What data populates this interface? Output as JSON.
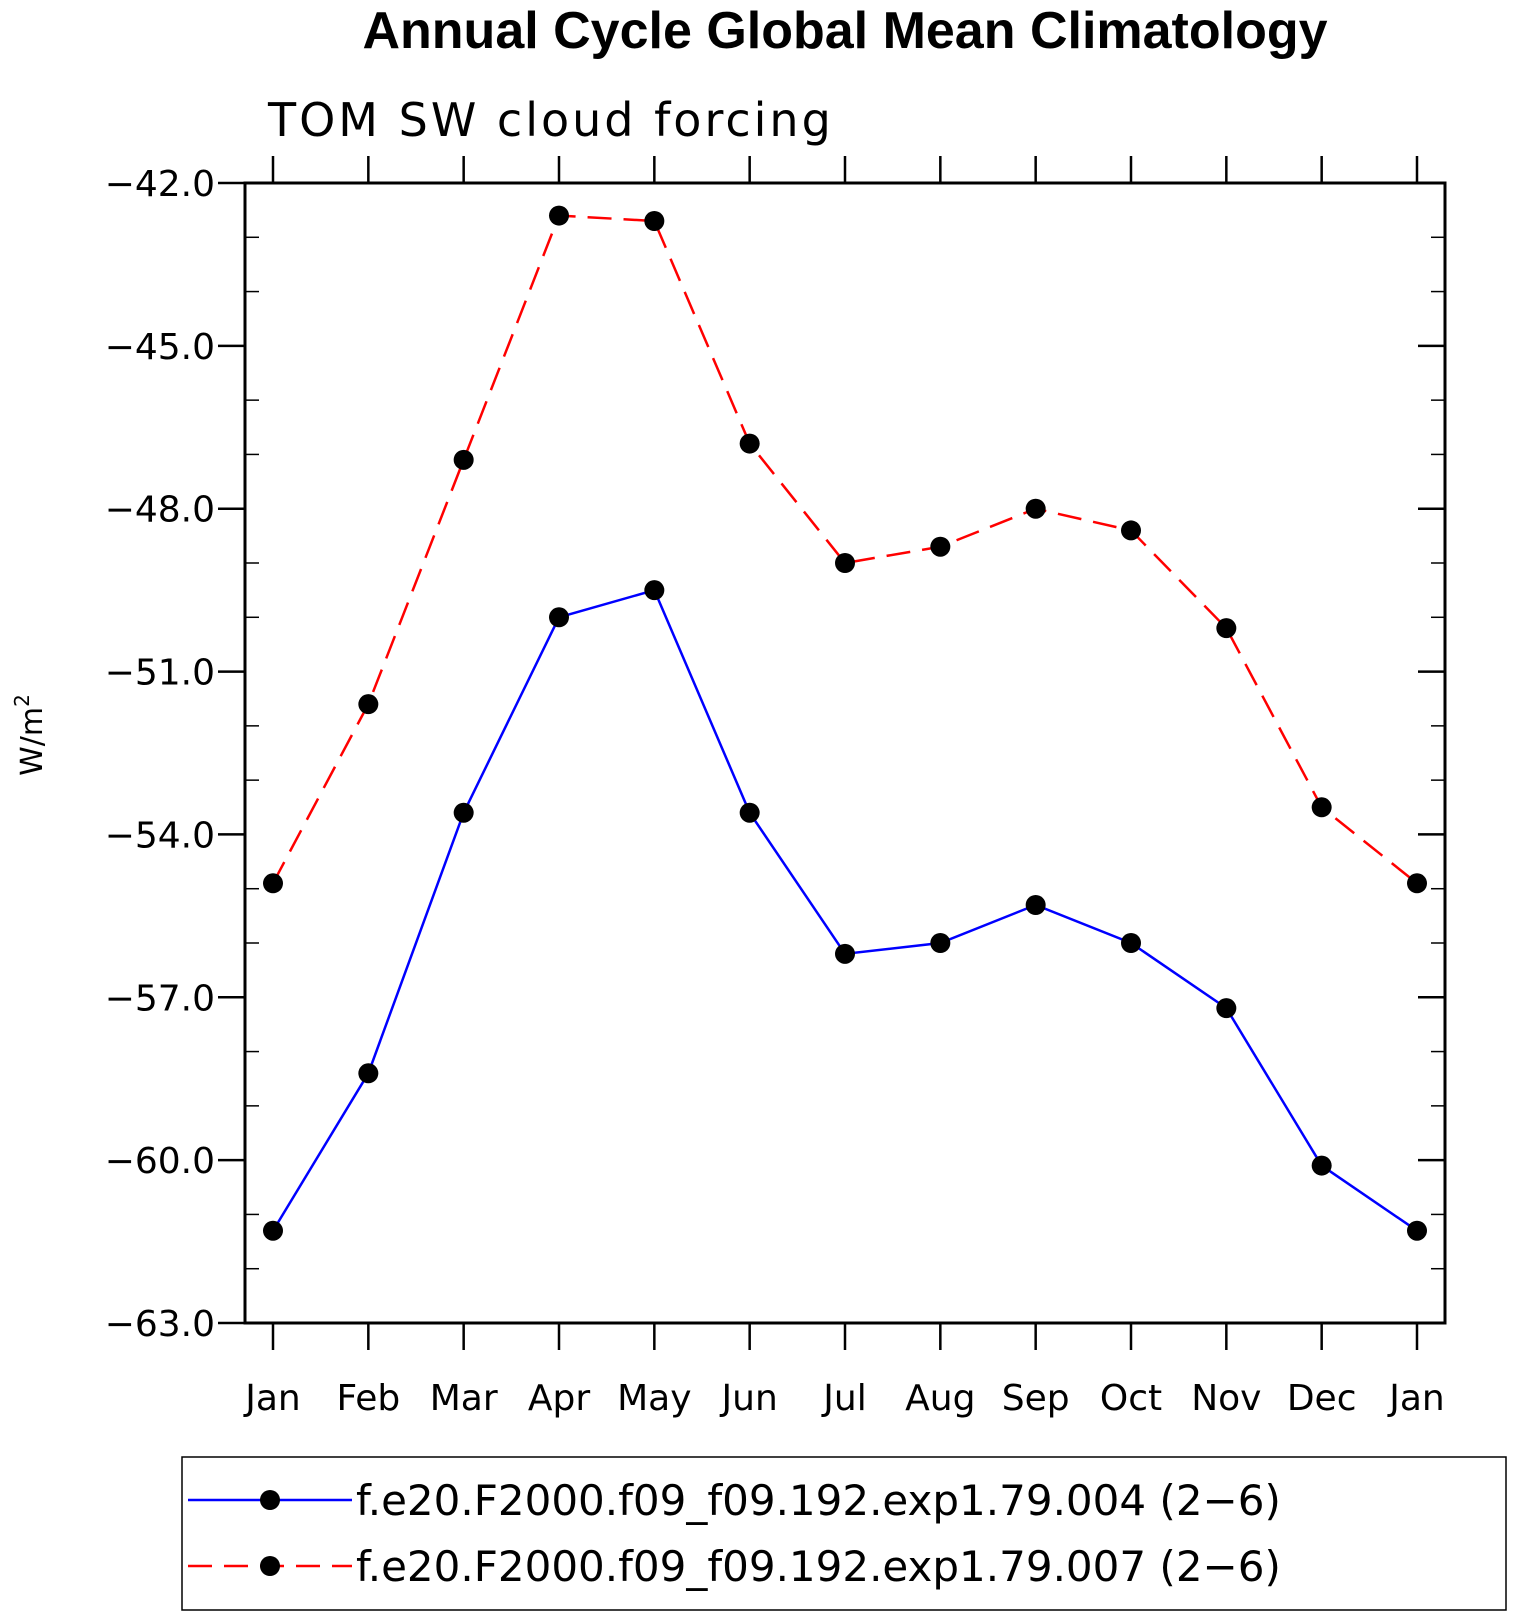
{
  "chart_data": {
    "type": "line",
    "title": "Annual Cycle Global Mean Climatology",
    "subtitle": "TOM SW cloud forcing",
    "ylabel": "W/m",
    "ylabel_superscript": "2",
    "xlabel": "",
    "categories": [
      "Jan",
      "Feb",
      "Mar",
      "Apr",
      "May",
      "Jun",
      "Jul",
      "Aug",
      "Sep",
      "Oct",
      "Nov",
      "Dec",
      "Jan"
    ],
    "ylim": [
      -63.0,
      -42.0
    ],
    "yticks": [
      -42.0,
      -45.0,
      -48.0,
      -51.0,
      -54.0,
      -57.0,
      -60.0,
      -63.0
    ],
    "ytick_labels": [
      "−42.0",
      "−45.0",
      "−48.0",
      "−51.0",
      "−54.0",
      "−57.0",
      "−60.0",
      "−63.0"
    ],
    "series": [
      {
        "name": "f.e20.F2000.f09_f09.192.exp1.79.004 (2−6)",
        "color": "#0000ff",
        "line_style": "solid",
        "marker": "filled-circle",
        "values": [
          -61.3,
          -58.4,
          -53.6,
          -50.0,
          -49.5,
          -53.6,
          -56.2,
          -56.0,
          -55.3,
          -56.0,
          -57.2,
          -60.1,
          -61.3
        ]
      },
      {
        "name": "f.e20.F2000.f09_f09.192.exp1.79.007 (2−6)",
        "color": "#ff0000",
        "line_style": "dashed",
        "marker": "filled-circle",
        "values": [
          -54.9,
          -51.6,
          -47.1,
          -42.6,
          -42.7,
          -46.8,
          -49.0,
          -48.7,
          -48.0,
          -48.4,
          -50.2,
          -53.5,
          -54.9
        ]
      }
    ],
    "legend": "bottom",
    "grid": false
  }
}
